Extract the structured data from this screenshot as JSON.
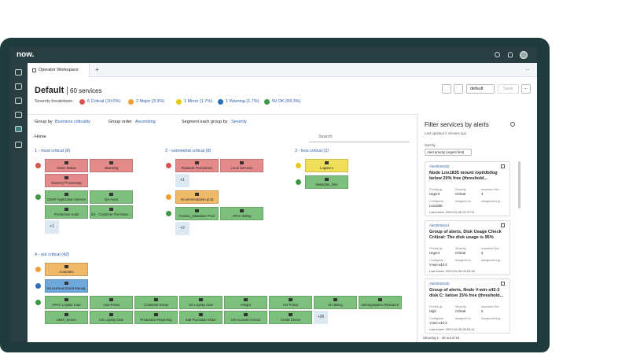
{
  "header": {
    "logo": "now.",
    "tab": "Operator Workspace",
    "new_tab": "+",
    "more": "..."
  },
  "workspace": {
    "title": "Default",
    "services": "60 services",
    "severity_label": "Severity breakdown",
    "severity": [
      {
        "text": "6 Critical (10.0%)",
        "color": "#d9534f"
      },
      {
        "text": "2 Major (3.3%)",
        "color": "#f0a030"
      },
      {
        "text": "1 Minor (1.7%)",
        "color": "#e8c81a"
      },
      {
        "text": "1 Warning (1.7%)",
        "color": "#2f6fb5"
      },
      {
        "text": "50 OK (83.3%)",
        "color": "#3c9a47"
      }
    ],
    "toolbar": {
      "view": "default",
      "save": "Save",
      "more": "..."
    },
    "filters": [
      {
        "label": "Group by",
        "value": "Business criticality"
      },
      {
        "label": "Group order",
        "value": "Ascending"
      },
      {
        "label": "Segment each group by",
        "value": "Severity"
      }
    ],
    "breadcrumb": "Home",
    "search": "Search",
    "groups": [
      {
        "label": "1 - most critical (8)",
        "segments": [
          {
            "color": "#e48a8a",
            "icon_color": "#d9534f",
            "tiles": [
              "Order Status",
              "eBanking",
              "Delivery Processing"
            ]
          },
          {
            "color": "#7dbf7d",
            "icon_color": "#3c9a47",
            "tiles": [
              "CDAP Application Service",
              "QA Audit",
              "Production Audit",
              "E2 - Customer Purchase ..."
            ],
            "more": "+1"
          }
        ]
      },
      {
        "label": "2 - somewhat critical (8)",
        "segments": [
          {
            "color": "#e48a8a",
            "icon_color": "#d9534f",
            "tiles": [
              "Rewards Promotions",
              "Local Services"
            ],
            "more": "+1"
          },
          {
            "color": "#f0b96a",
            "icon_color": "#f0a030",
            "tiles": [
              "recommendation prod"
            ]
          },
          {
            "color": "#7dbf7d",
            "icon_color": "#3c9a47",
            "tiles": [
              "Invoice_Validation Prod",
              "APAC Billing"
            ],
            "more": "+2"
          }
        ]
      },
      {
        "label": "3 - less critical (2)",
        "segments": [
          {
            "color": "#f0df5a",
            "icon_color": "#e8c81a",
            "tiles": [
              "Logistics"
            ]
          },
          {
            "color": "#7dbf7d",
            "icon_color": "#3c9a47",
            "tiles": [
              "Networks_Dev"
            ]
          }
        ]
      },
      {
        "label": "4 - not critical (42)",
        "segments": [
          {
            "color": "#f0b96a",
            "icon_color": "#f0a030",
            "tiles": [
              "Autorules"
            ]
          },
          {
            "color": "#6fa8dc",
            "icon_color": "#2f6fb5",
            "tiles": [
              "ServiceNow Event Manag..."
            ]
          },
          {
            "color": "#7dbf7d",
            "icon_color": "#3c9a47",
            "tiles": [
              "APAC Loyalty Club",
              "Asia Portal",
              "Customer Email",
              "UK Loyalty Club",
              "Allegro",
              "UK Portal",
              "UK Billing",
              "Demographics Research",
              "UNIX_Server",
              "US Loyalty Club",
              "Production Reporting",
              "Edit Purchase Order",
              "US Account Access",
              "Credit Check"
            ],
            "more": "+26"
          }
        ]
      }
    ]
  },
  "alerts": {
    "title": "Filter services by alerts",
    "updated": "Last updated 2 minutes ago",
    "sort_label": "Sort by",
    "sort_value": "Alert priority (urgent first)",
    "cards": [
      {
        "id": "Alert0020432",
        "title": "Node Lnx1835 mount /opt/db/log below 20% free (threshold...",
        "fields": [
          {
            "label": "Priority gr...",
            "value": "Urgent"
          },
          {
            "label": "Severity",
            "value": "Critical"
          },
          {
            "label": "Impacted Ser...",
            "value": "3"
          },
          {
            "label": "Configurat...",
            "value": "Lnx1835"
          },
          {
            "label": "Assigned to"
          },
          {
            "label": "Assignment gr..."
          }
        ],
        "last_event": "Last event: 2023-04-08 05:37:51"
      },
      {
        "id": "Alert0020441",
        "title": "Group of alerts, Disk Usage Check Critical: The disk usage is 95%",
        "fields": [
          {
            "label": "Priority gr...",
            "value": "Urgent"
          },
          {
            "label": "Severity",
            "value": "Critical"
          },
          {
            "label": "Impacted Ser...",
            "value": "2"
          },
          {
            "label": "Configurat...",
            "value": "V-win-x42-2"
          },
          {
            "label": "Assigned to"
          },
          {
            "label": "Assignment gr..."
          }
        ],
        "last_event": "Last event: 2023-04-08 09:03:46"
      },
      {
        "id": "Alert0020440",
        "title": "Group of alerts, Node V-win-x42-2 disk C: below 15% free (threshold...",
        "fields": [
          {
            "label": "Priority gr...",
            "value": "High"
          },
          {
            "label": "Severity",
            "value": "Critical"
          },
          {
            "label": "Impacted Ser...",
            "value": "2"
          },
          {
            "label": "Configurat...",
            "value": "V-win-x42-2"
          },
          {
            "label": "Assigned to"
          },
          {
            "label": "Assignment gr..."
          }
        ],
        "last_event": "Last event: 2023-04-08 08:53:41"
      }
    ],
    "footer": "Showing 1 - 25 out of 51"
  }
}
